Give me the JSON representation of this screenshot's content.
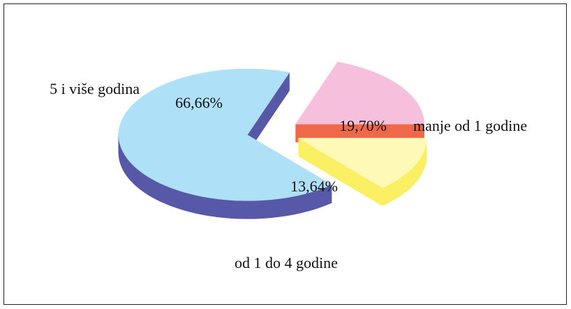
{
  "chart_data": {
    "type": "pie",
    "categories": [
      "manje od 1 godine",
      "5 i više godina",
      "od 1 do 4 godine"
    ],
    "values": [
      19.7,
      66.66,
      13.64
    ],
    "value_labels": [
      "19,70%",
      "66,66%",
      "13,64%"
    ],
    "colors": [
      "#f6c0dc",
      "#aee0f8",
      "#fff9b8"
    ],
    "side_colors": [
      "#f0684a",
      "#5858a8",
      "#fbef64"
    ]
  }
}
